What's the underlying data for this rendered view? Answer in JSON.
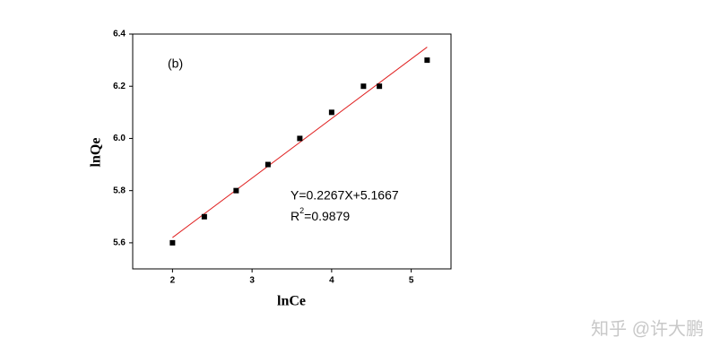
{
  "chart_data": {
    "type": "scatter",
    "annotation": "(b)",
    "equation": "Y=0.2267X+5.1667",
    "r_squared": {
      "symbol": "R",
      "superscript": "2",
      "text": "=0.9879"
    },
    "x_label": "lnCe",
    "y_label": "lnQe",
    "x": [
      2,
      2.4,
      2.8,
      3.2,
      3.6,
      4.0,
      4.4,
      4.6,
      5.2
    ],
    "values": [
      5.6,
      5.7,
      5.8,
      5.9,
      6.0,
      6.1,
      6.2,
      6.2,
      6.3
    ],
    "color": "#000000",
    "fit_line": {
      "x": [
        2,
        5.2
      ],
      "values": [
        5.62,
        6.35
      ],
      "color": "#e02020"
    },
    "xlim": [
      1.5,
      5.5
    ],
    "xticks": [
      2,
      3,
      4,
      5
    ],
    "ylim": [
      5.5,
      6.4
    ],
    "yticks": [
      5.6,
      5.8,
      {
        "value": 6,
        "label": "6.0"
      },
      6.2,
      6.4
    ],
    "watermark": "知乎 @许大鹏"
  }
}
